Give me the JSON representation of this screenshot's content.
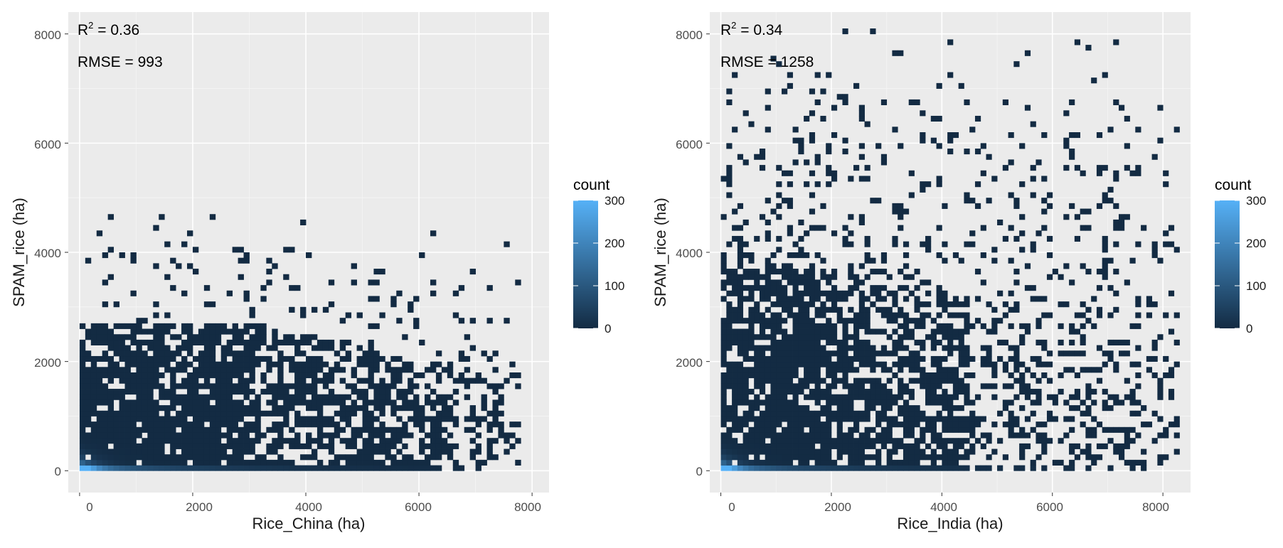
{
  "chart_data": [
    {
      "type": "heatmap",
      "xlabel": "Rice_China (ha)",
      "ylabel": "SPAM_rice (ha)",
      "xlim": [
        -200,
        8300
      ],
      "ylim": [
        -400,
        8400
      ],
      "x_ticks": [
        0,
        2000,
        4000,
        6000,
        8000
      ],
      "y_ticks": [
        0,
        2000,
        4000,
        6000,
        8000
      ],
      "x_tick_labels": [
        "0",
        "2000",
        "4000",
        "6000",
        "8000"
      ],
      "y_tick_labels": [
        "0",
        "2000",
        "4000",
        "6000",
        "8000"
      ],
      "annotations": {
        "r2_label": "R",
        "r2_sup": "2",
        "r2_value": " = 0.36",
        "rmse": "RMSE = 993"
      },
      "grid": true,
      "bin_size": 100,
      "x_data_max": 7700,
      "y_dense_max": 2650,
      "y_scatter_max": 4600,
      "legend": {
        "title": "count",
        "range": [
          0,
          300
        ],
        "ticks": [
          "300",
          "200",
          "100",
          "0"
        ],
        "placement": "right",
        "low_color": "#132b43",
        "high_color": "#56b1f7"
      }
    },
    {
      "type": "heatmap",
      "xlabel": "Rice_India (ha)",
      "ylabel": "SPAM_rice (ha)",
      "xlim": [
        -200,
        8500
      ],
      "ylim": [
        -400,
        8400
      ],
      "x_ticks": [
        0,
        2000,
        4000,
        6000,
        8000
      ],
      "y_ticks": [
        0,
        2000,
        4000,
        6000,
        8000
      ],
      "x_tick_labels": [
        "0",
        "2000",
        "4000",
        "6000",
        "8000"
      ],
      "y_tick_labels": [
        "0",
        "2000",
        "4000",
        "6000",
        "8000"
      ],
      "annotations": {
        "r2_label": "R",
        "r2_sup": "2",
        "r2_value": " = 0.34",
        "rmse": "RMSE = 1258"
      },
      "grid": true,
      "bin_size": 100,
      "x_data_max": 8200,
      "y_dense_max": 3600,
      "y_scatter_max": 8050,
      "legend": {
        "title": "count",
        "range": [
          0,
          300
        ],
        "ticks": [
          "300",
          "200",
          "100",
          "0"
        ],
        "placement": "right",
        "low_color": "#132b43",
        "high_color": "#56b1f7"
      }
    }
  ]
}
